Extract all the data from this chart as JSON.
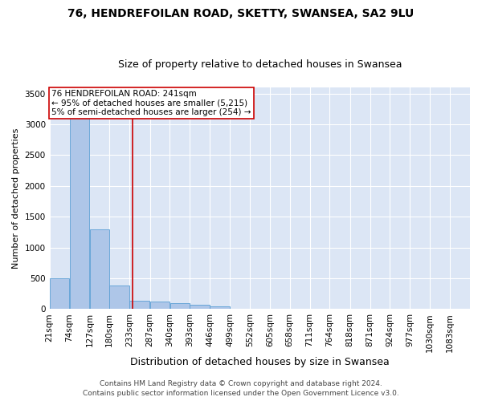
{
  "title1": "76, HENDREFOILAN ROAD, SKETTY, SWANSEA, SA2 9LU",
  "title2": "Size of property relative to detached houses in Swansea",
  "xlabel": "Distribution of detached houses by size in Swansea",
  "ylabel": "Number of detached properties",
  "footer1": "Contains HM Land Registry data © Crown copyright and database right 2024.",
  "footer2": "Contains public sector information licensed under the Open Government Licence v3.0.",
  "annotation_line1": "76 HENDREFOILAN ROAD: 241sqm",
  "annotation_line2": "← 95% of detached houses are smaller (5,215)",
  "annotation_line3": "5% of semi-detached houses are larger (254) →",
  "property_size": 241,
  "bar_left_edges": [
    21,
    74,
    127,
    180,
    233,
    287,
    340,
    393,
    446,
    499,
    552,
    605,
    658,
    711,
    764,
    818,
    871,
    924,
    977,
    1030
  ],
  "bar_heights": [
    500,
    3300,
    1300,
    380,
    140,
    120,
    100,
    70,
    50,
    0,
    0,
    0,
    0,
    0,
    0,
    0,
    0,
    0,
    0,
    0
  ],
  "bin_width": 53,
  "x_tick_labels": [
    "21sqm",
    "74sqm",
    "127sqm",
    "180sqm",
    "233sqm",
    "287sqm",
    "340sqm",
    "393sqm",
    "446sqm",
    "499sqm",
    "552sqm",
    "605sqm",
    "658sqm",
    "711sqm",
    "764sqm",
    "818sqm",
    "871sqm",
    "924sqm",
    "977sqm",
    "1030sqm",
    "1083sqm"
  ],
  "bar_color": "#aec6e8",
  "bar_edge_color": "#5a9fd4",
  "bg_color": "#dce6f5",
  "grid_color": "#ffffff",
  "fig_bg_color": "#ffffff",
  "vline_color": "#cc0000",
  "annotation_box_color": "#cc0000",
  "ylim": [
    0,
    3600
  ],
  "yticks": [
    0,
    500,
    1000,
    1500,
    2000,
    2500,
    3000,
    3500
  ],
  "title1_fontsize": 10,
  "title2_fontsize": 9,
  "xlabel_fontsize": 9,
  "ylabel_fontsize": 8,
  "tick_fontsize": 7.5,
  "annotation_fontsize": 7.5,
  "footer_fontsize": 6.5
}
